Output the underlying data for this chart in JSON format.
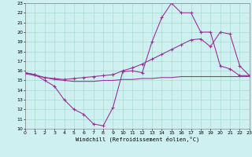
{
  "xlabel": "Windchill (Refroidissement éolien,°C)",
  "xlim": [
    0,
    23
  ],
  "ylim": [
    10,
    23
  ],
  "yticks": [
    10,
    11,
    12,
    13,
    14,
    15,
    16,
    17,
    18,
    19,
    20,
    21,
    22,
    23
  ],
  "xticks": [
    0,
    1,
    2,
    3,
    4,
    5,
    6,
    7,
    8,
    9,
    10,
    11,
    12,
    13,
    14,
    15,
    16,
    17,
    18,
    19,
    20,
    21,
    22,
    23
  ],
  "bg_color": "#cff0f0",
  "grid_color": "#aaddcc",
  "line_color": "#993399",
  "line1_x": [
    0,
    1,
    2,
    3,
    4,
    5,
    6,
    7,
    8,
    9,
    10,
    11,
    12,
    13,
    14,
    15,
    16,
    17,
    18,
    19,
    20,
    21,
    22,
    23
  ],
  "line1_y": [
    15.8,
    15.6,
    15.0,
    14.4,
    13.0,
    12.0,
    11.5,
    10.5,
    10.3,
    12.2,
    15.9,
    16.0,
    15.8,
    19.0,
    21.5,
    23.0,
    22.0,
    22.0,
    20.0,
    20.0,
    16.5,
    16.2,
    15.5,
    15.5
  ],
  "line2_x": [
    0,
    1,
    2,
    3,
    4,
    5,
    6,
    7,
    8,
    9,
    10,
    11,
    12,
    13,
    14,
    15,
    16,
    17,
    18,
    19,
    20,
    21,
    22,
    23
  ],
  "line2_y": [
    15.8,
    15.6,
    15.3,
    15.2,
    15.1,
    15.2,
    15.3,
    15.4,
    15.5,
    15.6,
    16.0,
    16.3,
    16.7,
    17.2,
    17.7,
    18.2,
    18.7,
    19.2,
    19.3,
    18.5,
    20.0,
    19.8,
    16.5,
    15.5
  ],
  "line3_x": [
    0,
    1,
    2,
    3,
    4,
    5,
    6,
    7,
    8,
    9,
    10,
    11,
    12,
    13,
    14,
    15,
    16,
    17,
    18,
    19,
    20,
    21,
    22,
    23
  ],
  "line3_y": [
    15.7,
    15.5,
    15.3,
    15.1,
    15.0,
    14.9,
    14.9,
    14.9,
    15.0,
    15.0,
    15.1,
    15.1,
    15.2,
    15.2,
    15.3,
    15.3,
    15.4,
    15.4,
    15.4,
    15.4,
    15.4,
    15.4,
    15.4,
    15.4
  ],
  "line4_x": [
    0,
    23
  ],
  "line4_y": [
    15.8,
    15.5
  ]
}
